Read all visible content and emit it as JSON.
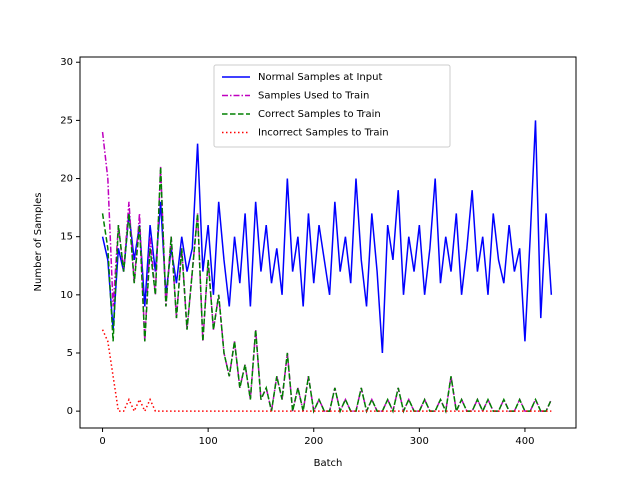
{
  "chart_data": {
    "type": "line",
    "x_label": "Batch",
    "y_label": "Number of Samples",
    "x": [
      0,
      5,
      10,
      15,
      20,
      25,
      30,
      35,
      40,
      45,
      50,
      55,
      60,
      65,
      70,
      75,
      80,
      85,
      90,
      95,
      100,
      105,
      110,
      115,
      120,
      125,
      130,
      135,
      140,
      145,
      150,
      155,
      160,
      165,
      170,
      175,
      180,
      185,
      190,
      195,
      200,
      205,
      210,
      215,
      220,
      225,
      230,
      235,
      240,
      245,
      250,
      255,
      260,
      265,
      270,
      275,
      280,
      285,
      290,
      295,
      300,
      305,
      310,
      315,
      320,
      325,
      330,
      335,
      340,
      345,
      350,
      355,
      360,
      365,
      370,
      375,
      380,
      385,
      390,
      395,
      400,
      405,
      410,
      415,
      420,
      425
    ],
    "series": [
      {
        "name": "Normal Samples at Input",
        "color": "#0000ff",
        "dash": "solid",
        "values": [
          15,
          13,
          7,
          14,
          12,
          17,
          13,
          16,
          9,
          16,
          12,
          18,
          10,
          14,
          11,
          15,
          12,
          14,
          23,
          12,
          16,
          10,
          18,
          13,
          9,
          15,
          11,
          17,
          9,
          18,
          12,
          16,
          11,
          14,
          10,
          20,
          12,
          15,
          9,
          17,
          11,
          16,
          13,
          10,
          18,
          12,
          15,
          11,
          20,
          13,
          9,
          17,
          12,
          5,
          16,
          13,
          19,
          10,
          15,
          12,
          16,
          10,
          14,
          20,
          11,
          15,
          12,
          17,
          10,
          14,
          19,
          12,
          15,
          10,
          17,
          13,
          11,
          16,
          12,
          14,
          6,
          15,
          25,
          8,
          17,
          10
        ]
      },
      {
        "name": "Samples Used to Train",
        "color": "#bf00bf",
        "dash": "dashdot",
        "values": [
          24,
          20,
          9,
          16,
          12,
          18,
          11,
          17,
          6,
          15,
          10,
          21,
          9,
          15,
          8,
          14,
          7,
          12,
          17,
          6,
          13,
          7,
          10,
          5,
          3,
          6,
          2,
          4,
          1,
          7,
          1,
          2,
          0,
          3,
          1,
          5,
          0,
          2,
          0,
          3,
          0,
          1,
          0,
          0,
          2,
          0,
          1,
          0,
          0,
          2,
          0,
          1,
          0,
          0,
          1,
          0,
          2,
          0,
          1,
          0,
          0,
          1,
          0,
          0,
          1,
          0,
          3,
          0,
          1,
          0,
          0,
          1,
          0,
          1,
          0,
          0,
          1,
          0,
          0,
          1,
          0,
          0,
          1,
          0,
          0,
          1
        ]
      },
      {
        "name": "Correct Samples to Train",
        "color": "#008000",
        "dash": "dashed",
        "values": [
          17,
          14,
          6,
          16,
          12,
          17,
          11,
          16,
          6,
          14,
          10,
          21,
          9,
          15,
          8,
          14,
          7,
          12,
          17,
          6,
          13,
          7,
          10,
          5,
          3,
          6,
          2,
          4,
          1,
          7,
          1,
          2,
          0,
          3,
          1,
          5,
          0,
          2,
          0,
          3,
          0,
          1,
          0,
          0,
          2,
          0,
          1,
          0,
          0,
          2,
          0,
          1,
          0,
          0,
          1,
          0,
          2,
          0,
          1,
          0,
          0,
          1,
          0,
          0,
          1,
          0,
          3,
          0,
          1,
          0,
          0,
          1,
          0,
          1,
          0,
          0,
          1,
          0,
          0,
          1,
          0,
          0,
          1,
          0,
          0,
          1
        ]
      },
      {
        "name": "Incorrect Samples to Train",
        "color": "#ff0000",
        "dash": "dotted",
        "values": [
          7,
          6,
          3,
          0,
          0,
          1,
          0,
          1,
          0,
          1,
          0,
          0,
          0,
          0,
          0,
          0,
          0,
          0,
          0,
          0,
          0,
          0,
          0,
          0,
          0,
          0,
          0,
          0,
          0,
          0,
          0,
          0,
          0,
          0,
          0,
          0,
          0,
          0,
          0,
          0,
          0,
          0,
          0,
          0,
          0,
          0,
          0,
          0,
          0,
          0,
          0,
          0,
          0,
          0,
          0,
          0,
          0,
          0,
          0,
          0,
          0,
          0,
          0,
          0,
          0,
          0,
          0,
          0,
          0,
          0,
          0,
          0,
          0,
          0,
          0,
          0,
          0,
          0,
          0,
          0,
          0,
          0,
          0,
          0,
          0,
          0
        ]
      }
    ],
    "xlim": [
      -21.35,
      448.35
    ],
    "ylim": [
      -1.45,
      30.45
    ],
    "xticks": [
      0,
      100,
      200,
      300,
      400
    ],
    "yticks": [
      0,
      5,
      10,
      15,
      20,
      25,
      30
    ],
    "legend": "upper center"
  }
}
